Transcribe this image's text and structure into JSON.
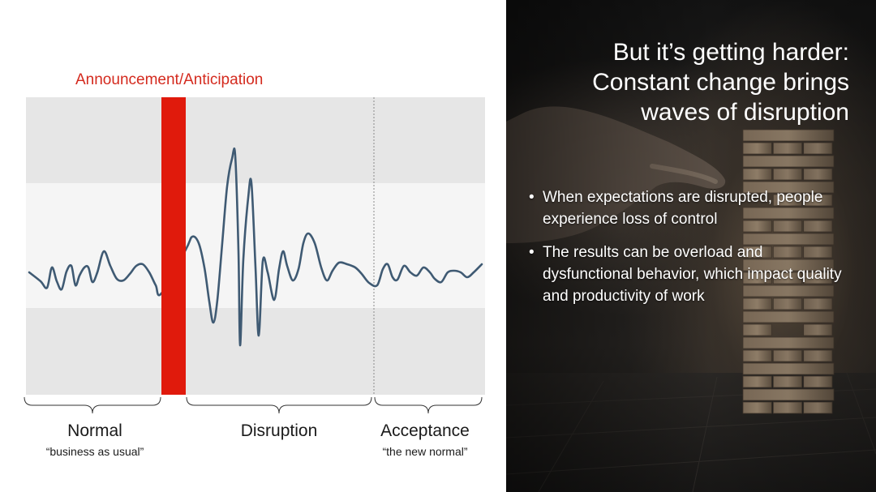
{
  "diagram": {
    "announcement_label": "Announcement/Anticipation",
    "phases": [
      {
        "name": "Normal",
        "caption": "“business as usual”"
      },
      {
        "name": "Disruption",
        "caption": ""
      },
      {
        "name": "Acceptance",
        "caption": "“the new normal”"
      }
    ],
    "colors": {
      "announcement_bar": "#e01a0c",
      "wave": "#3f5a73",
      "band_outer": "#e5e5e5",
      "band_inner": "#f5f5f5"
    }
  },
  "slide": {
    "title_lines": [
      "But it’s getting harder:",
      "Constant change brings",
      "waves of disruption"
    ],
    "bullets": [
      "When expectations are disrupted, people experience loss of control",
      "The results can be overload and dysfunctional behavior, which impact quality and productivity of work"
    ],
    "background_image": "hand-removing-block-from-wooden-tower"
  }
}
